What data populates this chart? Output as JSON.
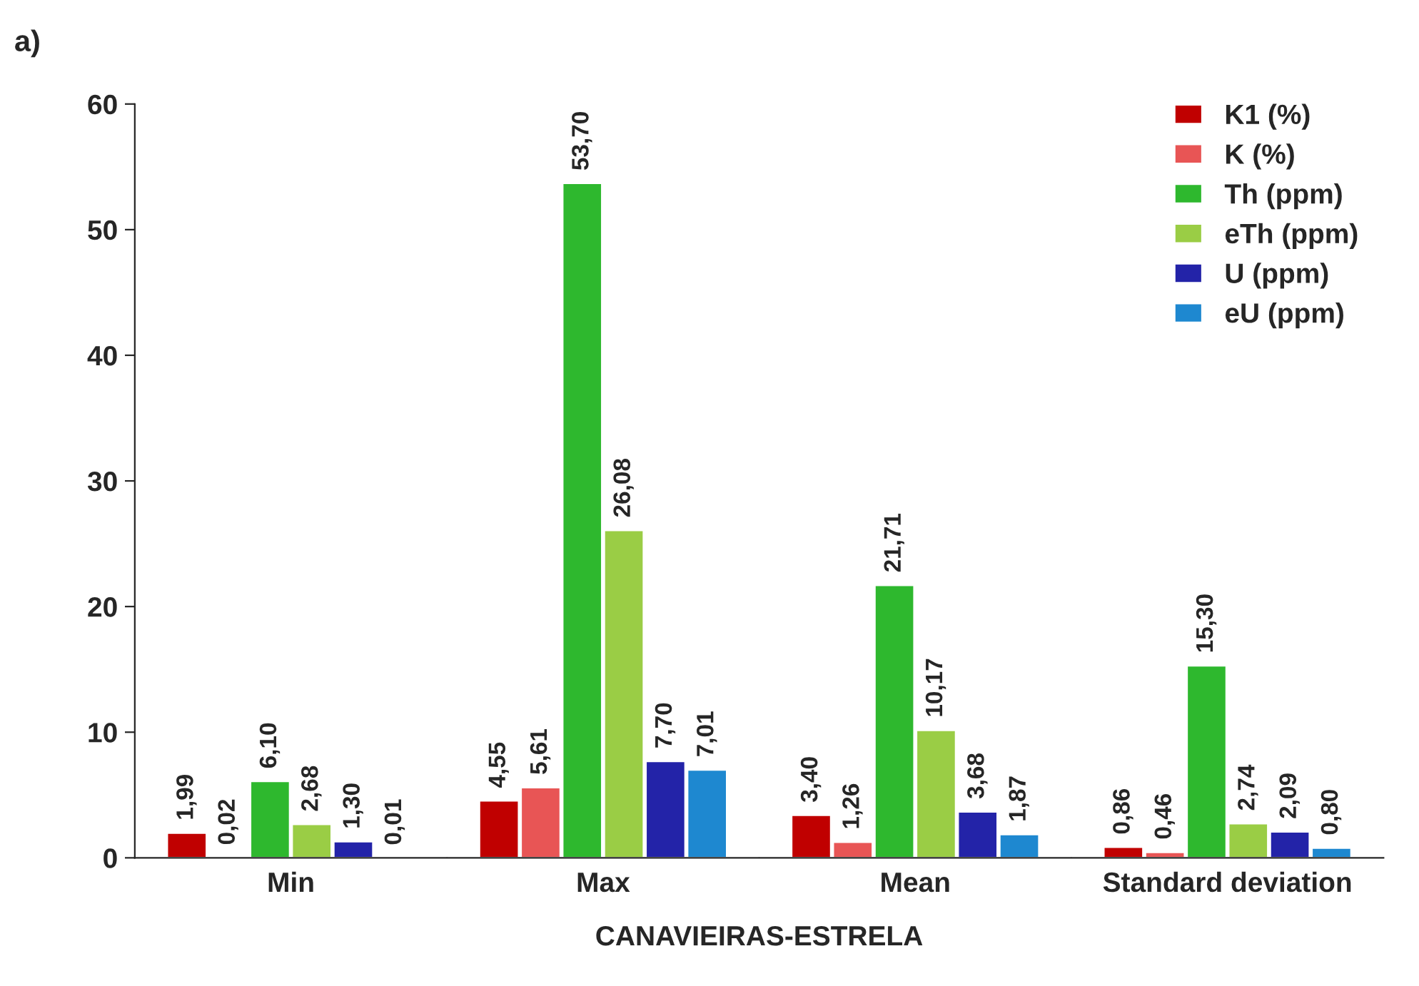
{
  "chart_data": {
    "type": "bar",
    "xlabel": "CANAVIEIRAS-ESTRELA",
    "annotations": [
      "a)"
    ],
    "categories": [
      "Min",
      "Max",
      "Mean",
      "Standard deviation"
    ],
    "series": [
      {
        "name": "K1 (%)",
        "color": "#c00000",
        "values": [
          1.99,
          4.55,
          3.4,
          0.86
        ],
        "value_labels": [
          "1,99",
          "4,55",
          "3,40",
          "0,86"
        ]
      },
      {
        "name": "K (%)",
        "color": "#e85555",
        "values": [
          0.02,
          5.61,
          1.26,
          0.46
        ],
        "value_labels": [
          "0,02",
          "5,61",
          "1,26",
          "0,46"
        ]
      },
      {
        "name": "Th (ppm)",
        "color": "#2eb82e",
        "values": [
          6.1,
          53.7,
          21.71,
          15.3
        ],
        "value_labels": [
          "6,10",
          "53,70",
          "21,71",
          "15,30"
        ]
      },
      {
        "name": "eTh (ppm)",
        "color": "#9acd45",
        "values": [
          2.68,
          26.08,
          10.17,
          2.74
        ],
        "value_labels": [
          "2,68",
          "26,08",
          "10,17",
          "2,74"
        ]
      },
      {
        "name": "U (ppm)",
        "color": "#2323a8",
        "values": [
          1.3,
          7.7,
          3.68,
          2.09
        ],
        "value_labels": [
          "1,30",
          "7,70",
          "3,68",
          "2,09"
        ]
      },
      {
        "name": "eU (ppm)",
        "color": "#1e88d0",
        "values": [
          0.01,
          7.01,
          1.87,
          0.8
        ],
        "value_labels": [
          "0,01",
          "7,01",
          "1,87",
          "0,80"
        ]
      }
    ],
    "ylim": [
      0,
      60
    ],
    "yticks": [
      0,
      10,
      20,
      30,
      40,
      50,
      60
    ],
    "grid": false,
    "legend": "top right"
  }
}
